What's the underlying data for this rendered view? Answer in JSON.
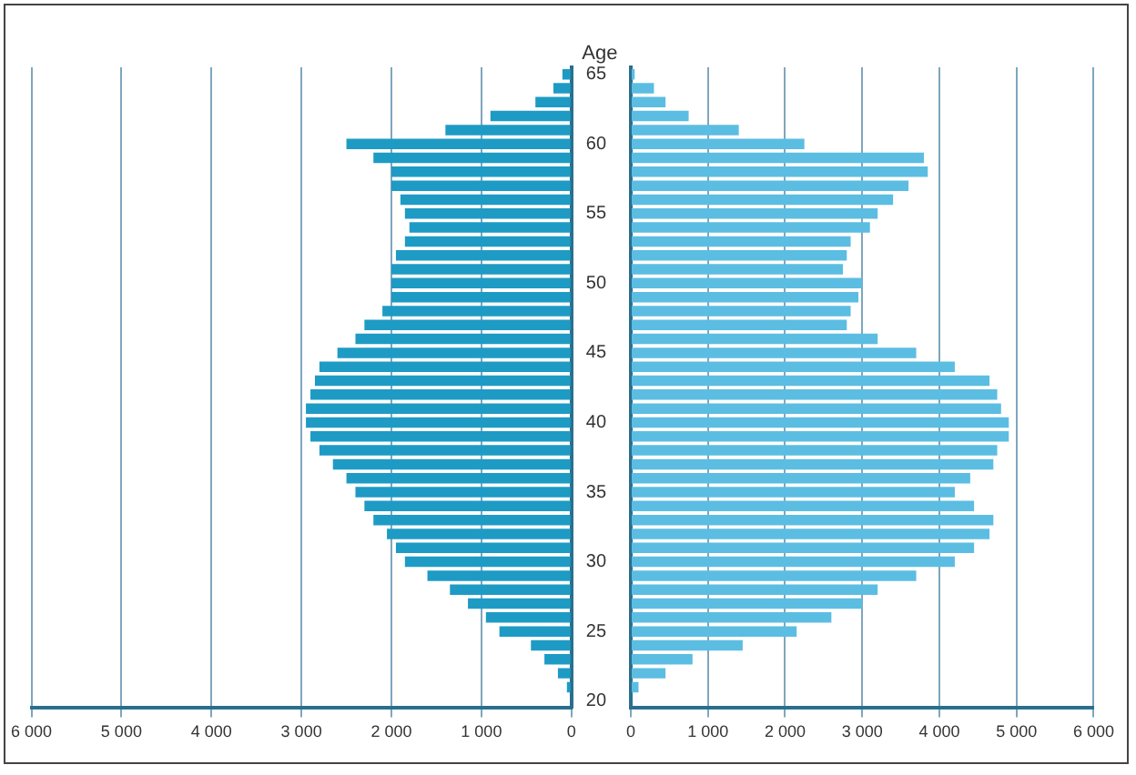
{
  "chart_data": [
    {
      "type": "bar",
      "orientation": "horizontal",
      "ylabel": "Age",
      "categories": [
        "65",
        null,
        null,
        null,
        null,
        "60",
        null,
        null,
        null,
        null,
        "55",
        null,
        null,
        null,
        null,
        "50",
        null,
        null,
        null,
        null,
        "45",
        null,
        null,
        null,
        null,
        "40",
        null,
        null,
        null,
        null,
        "35",
        null,
        null,
        null,
        null,
        "30",
        null,
        null,
        null,
        null,
        "25",
        null,
        null,
        null,
        null,
        "20"
      ],
      "series": [
        {
          "color": "#1e9bc4",
          "values": [
            100,
            200,
            400,
            900,
            1400,
            2500,
            2200,
            2000,
            2000,
            1900,
            1850,
            1800,
            1850,
            1950,
            2000,
            2000,
            2000,
            2100,
            2300,
            2400,
            2600,
            2800,
            2850,
            2900,
            2950,
            2950,
            2900,
            2800,
            2650,
            2500,
            2400,
            2300,
            2200,
            2050,
            1950,
            1850,
            1600,
            1350,
            1150,
            950,
            800,
            450,
            300,
            150,
            50,
            null
          ]
        }
      ],
      "xlim": [
        6000,
        0
      ],
      "xticks": [
        {
          "value": 6000,
          "label": "6 000"
        },
        {
          "value": 5000,
          "label": "5 000"
        },
        {
          "value": 4000,
          "label": "4 000"
        },
        {
          "value": 3000,
          "label": "3 000"
        },
        {
          "value": 2000,
          "label": "2 000"
        },
        {
          "value": 1000,
          "label": "1 000"
        },
        0
      ],
      "grid": "x"
    },
    {
      "type": "bar",
      "orientation": "horizontal",
      "categories": [
        "65",
        null,
        null,
        null,
        null,
        "60",
        null,
        null,
        null,
        null,
        "55",
        null,
        null,
        null,
        null,
        "50",
        null,
        null,
        null,
        null,
        "45",
        null,
        null,
        null,
        null,
        "40",
        null,
        null,
        null,
        null,
        "35",
        null,
        null,
        null,
        null,
        "30",
        null,
        null,
        null,
        null,
        "25",
        null,
        null,
        null,
        null,
        "20"
      ],
      "series": [
        {
          "color": "#5cbde2",
          "values": [
            50,
            300,
            450,
            750,
            1400,
            2250,
            3800,
            3850,
            3600,
            3400,
            3200,
            3100,
            2850,
            2800,
            2750,
            3000,
            2950,
            2850,
            2800,
            3200,
            3700,
            4200,
            4650,
            4750,
            4800,
            4900,
            4900,
            4750,
            4700,
            4400,
            4200,
            4450,
            4700,
            4650,
            4450,
            4200,
            3700,
            3200,
            3000,
            2600,
            2150,
            1450,
            800,
            450,
            100,
            null
          ]
        }
      ],
      "xlim": [
        0,
        6000
      ],
      "xticks": [
        0,
        {
          "value": 1000,
          "label": "1 000"
        },
        {
          "value": 2000,
          "label": "2 000"
        },
        {
          "value": 3000,
          "label": "3 000"
        },
        {
          "value": 4000,
          "label": "4 000"
        },
        {
          "value": 5000,
          "label": "5 000"
        },
        {
          "value": 6000,
          "label": "6 000"
        }
      ],
      "grid": "x",
      "tick_labels": "x"
    }
  ]
}
